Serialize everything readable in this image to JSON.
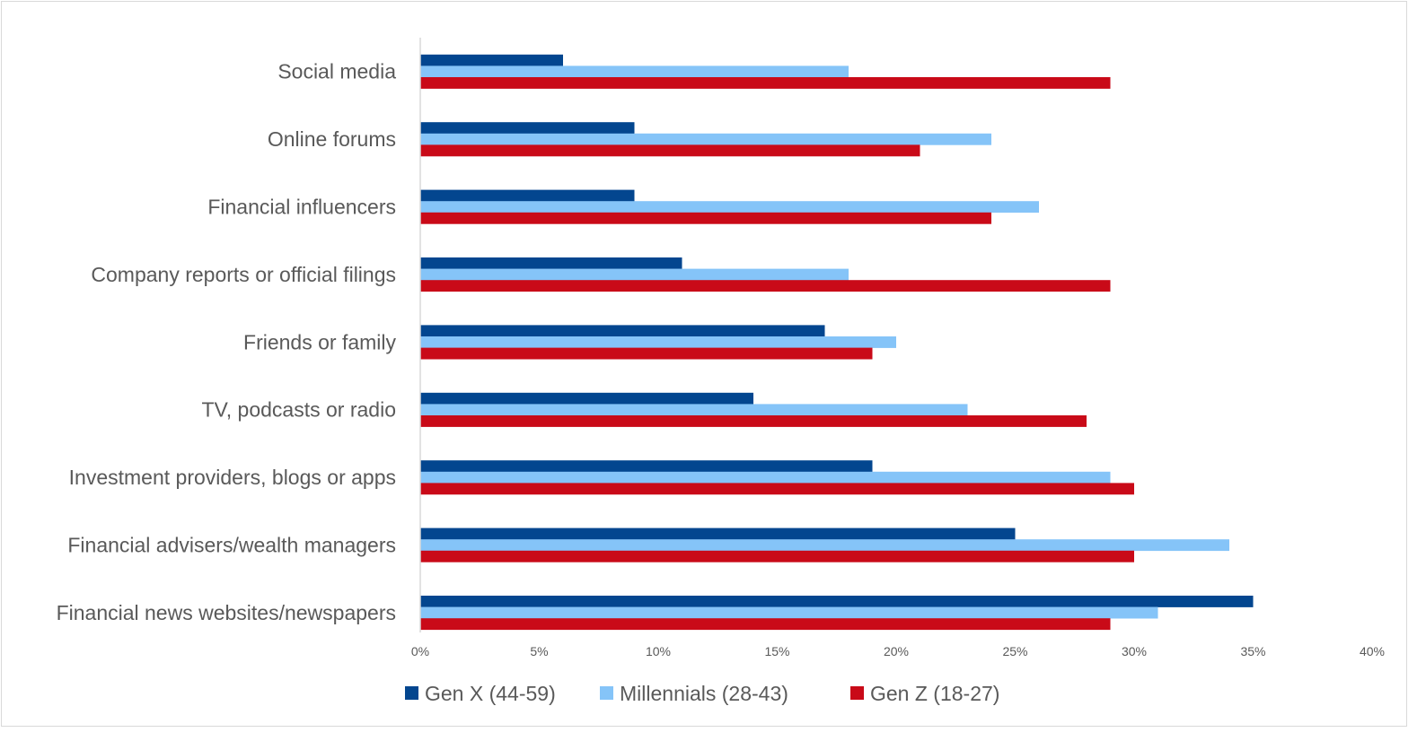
{
  "chart_data": {
    "type": "bar",
    "orientation": "horizontal",
    "categories": [
      "Social media",
      "Online forums",
      "Financial influencers",
      "Company reports or official filings",
      "Friends or family",
      "TV, podcasts or radio",
      "Investment providers, blogs or apps",
      "Financial advisers/wealth managers",
      "Financial news websites/newspapers"
    ],
    "series": [
      {
        "name": "Gen X (44-59)",
        "color": "#03468F",
        "values": [
          6,
          9,
          9,
          11,
          17,
          14,
          19,
          25,
          35
        ]
      },
      {
        "name": "Millennials (28-43)",
        "color": "#85C4F8",
        "values": [
          18,
          24,
          26,
          18,
          20,
          23,
          29,
          34,
          31
        ]
      },
      {
        "name": "Gen Z (18-27)",
        "color": "#C90A18",
        "values": [
          29,
          21,
          24,
          29,
          19,
          28,
          30,
          30,
          29
        ]
      }
    ],
    "xlim": [
      0,
      40
    ],
    "x_ticks": [
      "0%",
      "5%",
      "10%",
      "15%",
      "20%",
      "25%",
      "30%",
      "35%",
      "40%"
    ],
    "unit": "%",
    "grid": false,
    "legend_position": "bottom",
    "title": "",
    "xlabel": "",
    "ylabel": ""
  }
}
